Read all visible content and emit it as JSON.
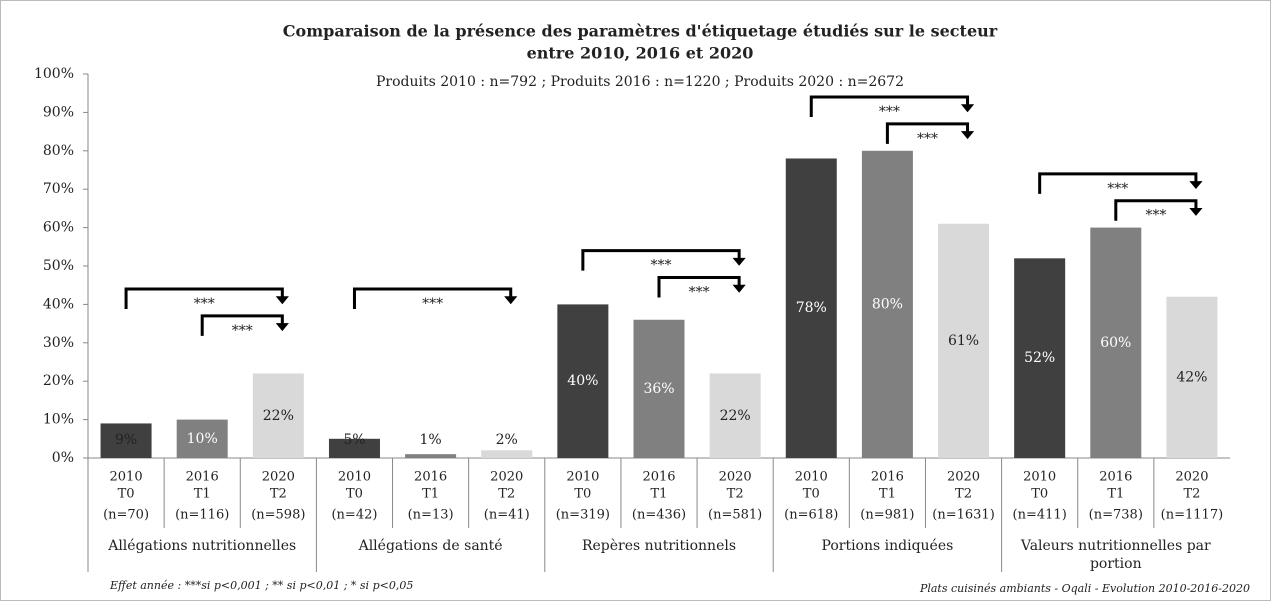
{
  "chart_data": {
    "type": "bar",
    "title": [
      "Comparaison de la présence des paramètres d'étiquetage étudiés sur le secteur",
      "entre 2010, 2016 et 2020"
    ],
    "subtitle": "Produits 2010 : n=792 ; Produits 2016 : n=1220 ; Produits 2020 : n=2672",
    "groups": [
      "Allégations nutritionnelles",
      "Allégations de santé",
      "Repères nutritionnels",
      "Portions indiquées",
      "Valeurs nutritionnelles par portion"
    ],
    "categories": [
      [
        "2010",
        "T0",
        "(n=70)"
      ],
      [
        "2016",
        "T1",
        "(n=116)"
      ],
      [
        "2020",
        "T2",
        "(n=598)"
      ],
      [
        "2010",
        "T0",
        "(n=42)"
      ],
      [
        "2016",
        "T1",
        "(n=13)"
      ],
      [
        "2020",
        "T2",
        "(n=41)"
      ],
      [
        "2010",
        "T0",
        "(n=319)"
      ],
      [
        "2016",
        "T1",
        "(n=436)"
      ],
      [
        "2020",
        "T2",
        "(n=581)"
      ],
      [
        "2010",
        "T0",
        "(n=618)"
      ],
      [
        "2016",
        "T1",
        "(n=981)"
      ],
      [
        "2020",
        "T2",
        "(n=1631)"
      ],
      [
        "2010",
        "T0",
        "(n=411)"
      ],
      [
        "2016",
        "T1",
        "(n=738)"
      ],
      [
        "2020",
        "T2",
        "(n=1117)"
      ]
    ],
    "values": [
      9,
      10,
      22,
      5,
      1,
      2,
      40,
      36,
      22,
      78,
      80,
      61,
      52,
      60,
      42
    ],
    "value_labels": [
      "9%",
      "10%",
      "22%",
      "5%",
      "1%",
      "2%",
      "40%",
      "36%",
      "22%",
      "78%",
      "80%",
      "61%",
      "52%",
      "60%",
      "42%"
    ],
    "colors": [
      "#404040",
      "#808080",
      "#d9d9d9"
    ],
    "ylim": [
      0,
      100
    ],
    "yticks": [
      {
        "value": 0,
        "label": "0%"
      },
      {
        "value": 10,
        "label": "10%"
      },
      {
        "value": 20,
        "label": "20%"
      },
      {
        "value": 30,
        "label": "30%"
      },
      {
        "value": 40,
        "label": "40%"
      },
      {
        "value": 50,
        "label": "50%"
      },
      {
        "value": 60,
        "label": "60%"
      },
      {
        "value": 70,
        "label": "70%"
      },
      {
        "value": 80,
        "label": "80%"
      },
      {
        "value": 90,
        "label": "90%"
      },
      {
        "value": 100,
        "label": "100%"
      }
    ],
    "annotations": [
      {
        "text": "***",
        "from": 0,
        "to": 2
      },
      {
        "text": "***",
        "from": 1,
        "to": 2
      },
      {
        "text": "***",
        "from": 3,
        "to": 5
      },
      {
        "text": "***",
        "from": 6,
        "to": 8
      },
      {
        "text": "***",
        "from": 7,
        "to": 8
      },
      {
        "text": "***",
        "from": 9,
        "to": 11
      },
      {
        "text": "***",
        "from": 10,
        "to": 11
      },
      {
        "text": "***",
        "from": 12,
        "to": 14
      },
      {
        "text": "***",
        "from": 13,
        "to": 14
      }
    ],
    "footnote_left": "Effet année : ***si p<0,001 ; ** si p<0,01 ; * si p<0,05",
    "footnote_right": "Plats cuisinés ambiants - Oqali - Evolution 2010-2016-2020"
  }
}
